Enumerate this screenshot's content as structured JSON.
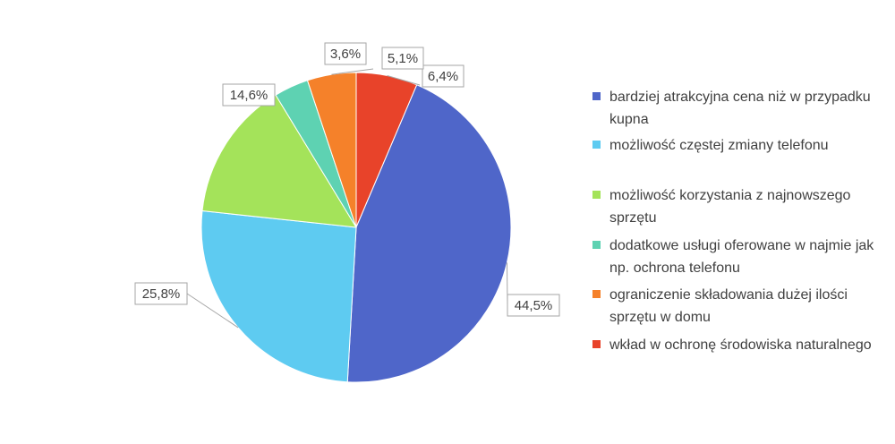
{
  "chart_data": {
    "type": "pie",
    "title": "",
    "start_angle_deg": 0,
    "direction": "clockwise",
    "slices": [
      {
        "label": "wkład w ochronę środowiska naturalnego",
        "value": 6.4,
        "value_label": "6,4%",
        "color": "#E8432A"
      },
      {
        "label": "bardziej atrakcyjna cena niż w przypadku kupna",
        "value": 44.5,
        "value_label": "44,5%",
        "color": "#4F66C9"
      },
      {
        "label": "możliwość częstej zmiany telefonu",
        "value": 25.8,
        "value_label": "25,8%",
        "color": "#5ECBF1"
      },
      {
        "label": "możliwość korzystania z najnowszego sprzętu",
        "value": 14.6,
        "value_label": "14,6%",
        "color": "#A4E35A"
      },
      {
        "label": "dodatkowe usługi oferowane w najmie jak np. ochrona telefonu",
        "value": 3.6,
        "value_label": "3,6%",
        "color": "#5ED2B2"
      },
      {
        "label": "ograniczenie składowania dużej ilości sprzętu w domu",
        "value": 5.1,
        "value_label": "5,1%",
        "color": "#F5812A"
      }
    ],
    "legend": {
      "placement": "right",
      "items": [
        {
          "label": "bardziej atrakcyjna cena niż w przypadku kupna",
          "color": "#4F66C9"
        },
        {
          "label": "możliwość częstej zmiany telefonu",
          "color": "#5ECBF1"
        },
        {
          "label": "możliwość korzystania z najnowszego sprzętu",
          "color": "#A4E35A"
        },
        {
          "label": "dodatkowe usługi oferowane w najmie jak np. ochrona telefonu",
          "color": "#5ED2B2"
        },
        {
          "label": "ograniczenie składowania dużej ilości sprzętu w domu",
          "color": "#F5812A"
        },
        {
          "label": "wkład w ochronę środowiska naturalnego",
          "color": "#E8432A"
        }
      ]
    }
  }
}
